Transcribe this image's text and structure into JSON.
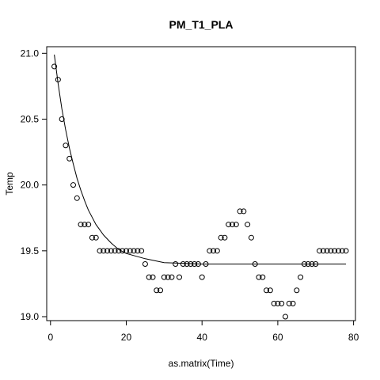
{
  "chart_data": {
    "type": "scatter",
    "title": "PM_T1_PLA",
    "xlabel": "as.matrix(Time)",
    "ylabel": "Temp",
    "xlim": [
      -1.0,
      80.5
    ],
    "ylim": [
      18.97,
      21.05
    ],
    "x_ticks": [
      0,
      20,
      40,
      60,
      80
    ],
    "y_ticks": [
      19.0,
      19.5,
      20.0,
      20.5,
      21.0
    ],
    "x_tick_labels": [
      "0",
      "20",
      "40",
      "60",
      "80"
    ],
    "y_tick_labels": [
      "19.0",
      "19.5",
      "20.0",
      "20.5",
      "21.0"
    ],
    "grid": false,
    "legend": "none",
    "series": [
      {
        "marker": "open-circle",
        "x": [
          1,
          2,
          3,
          4,
          5,
          6,
          7,
          8,
          9,
          10,
          11,
          12,
          13,
          14,
          15,
          16,
          17,
          18,
          19,
          20,
          21,
          22,
          23,
          24,
          25,
          26,
          27,
          28,
          29,
          30,
          31,
          32,
          33,
          34,
          35,
          36,
          37,
          38,
          39,
          40,
          41,
          42,
          43,
          44,
          45,
          46,
          47,
          48,
          49,
          50,
          51,
          52,
          53,
          54,
          55,
          56,
          57,
          58,
          59,
          60,
          61,
          62,
          63,
          64,
          65,
          66,
          67,
          68,
          69,
          70,
          71,
          72,
          73,
          74,
          75,
          76,
          77,
          78
        ],
        "y": [
          20.9,
          20.8,
          20.5,
          20.3,
          20.2,
          20.0,
          19.9,
          19.7,
          19.7,
          19.7,
          19.6,
          19.6,
          19.5,
          19.5,
          19.5,
          19.5,
          19.5,
          19.5,
          19.5,
          19.5,
          19.5,
          19.5,
          19.5,
          19.5,
          19.4,
          19.3,
          19.3,
          19.2,
          19.2,
          19.3,
          19.3,
          19.3,
          19.4,
          19.3,
          19.4,
          19.4,
          19.4,
          19.4,
          19.4,
          19.3,
          19.4,
          19.5,
          19.5,
          19.5,
          19.6,
          19.6,
          19.7,
          19.7,
          19.7,
          19.8,
          19.8,
          19.7,
          19.6,
          19.4,
          19.3,
          19.3,
          19.2,
          19.2,
          19.1,
          19.1,
          19.1,
          19.0,
          19.1,
          19.1,
          19.2,
          19.3,
          19.4,
          19.4,
          19.4,
          19.4,
          19.5,
          19.5,
          19.5,
          19.5,
          19.5,
          19.5,
          19.5,
          19.5
        ]
      },
      {
        "marker": "line",
        "x": [
          1,
          2,
          3,
          4,
          5,
          6,
          7,
          8,
          9,
          10,
          12,
          14,
          16,
          18,
          20,
          25,
          30,
          40,
          50,
          60,
          70,
          78
        ],
        "y": [
          20.99,
          20.77,
          20.58,
          20.42,
          20.28,
          20.16,
          20.05,
          19.96,
          19.88,
          19.81,
          19.7,
          19.62,
          19.56,
          19.51,
          19.48,
          19.44,
          19.41,
          19.4,
          19.4,
          19.4,
          19.4,
          19.4
        ]
      }
    ]
  }
}
